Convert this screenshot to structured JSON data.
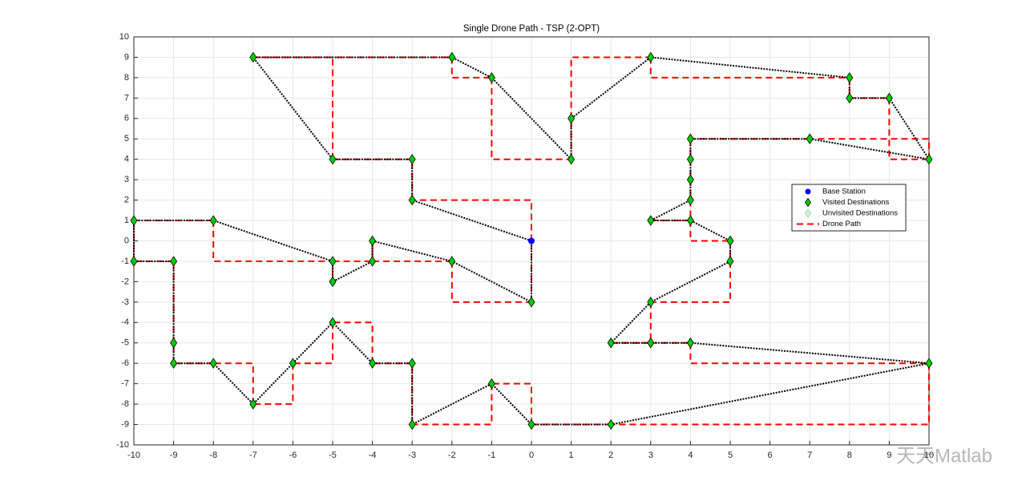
{
  "chart_data": {
    "type": "scatter",
    "title": "Single Drone Path - TSP (2-OPT)",
    "xlim": [
      -10,
      10
    ],
    "ylim": [
      -10,
      10
    ],
    "xticks": [
      -10,
      -9,
      -8,
      -7,
      -6,
      -5,
      -4,
      -3,
      -2,
      -1,
      0,
      1,
      2,
      3,
      4,
      5,
      6,
      7,
      8,
      9,
      10
    ],
    "yticks": [
      -10,
      -9,
      -8,
      -7,
      -6,
      -5,
      -4,
      -3,
      -2,
      -1,
      0,
      1,
      2,
      3,
      4,
      5,
      6,
      7,
      8,
      9,
      10
    ],
    "grid": true,
    "legend": "right",
    "series": [
      {
        "name": "Base Station",
        "color": "#0000ff",
        "marker": "circle",
        "x": [
          0
        ],
        "y": [
          0
        ]
      },
      {
        "name": "Visited Destinations",
        "color": "#00cc00",
        "marker": "diamond",
        "x": [
          -3,
          -3,
          -5,
          -7,
          -2,
          -1,
          1,
          1,
          3,
          8,
          8,
          9,
          10,
          7,
          4,
          4,
          4,
          4,
          3,
          4,
          5,
          5,
          3,
          2,
          3,
          4,
          10,
          2,
          0,
          -1,
          -3,
          -3,
          -4,
          -5,
          -6,
          -7,
          -8,
          -9,
          -9,
          -9,
          -10,
          -10,
          -8,
          -5,
          -5,
          -4,
          -4,
          -2,
          0
        ],
        "y": [
          2,
          4,
          4,
          9,
          9,
          8,
          4,
          6,
          9,
          8,
          7,
          7,
          4,
          5,
          5,
          4,
          3,
          2,
          1,
          1,
          0,
          -1,
          -3,
          -5,
          -5,
          -5,
          -6,
          -9,
          -9,
          -7,
          -9,
          -6,
          -6,
          -4,
          -6,
          -8,
          -6,
          -6,
          -5,
          -1,
          -1,
          1,
          1,
          -1,
          -2,
          -1,
          0,
          -1,
          -3
        ]
      },
      {
        "name": "Unvisited Destinations",
        "color": "#ccffcc",
        "marker": "diamond",
        "x": [],
        "y": []
      },
      {
        "name": "Drone Path",
        "color": "#ff0000",
        "marker": "none"
      }
    ],
    "watermark": "天天Matlab"
  }
}
